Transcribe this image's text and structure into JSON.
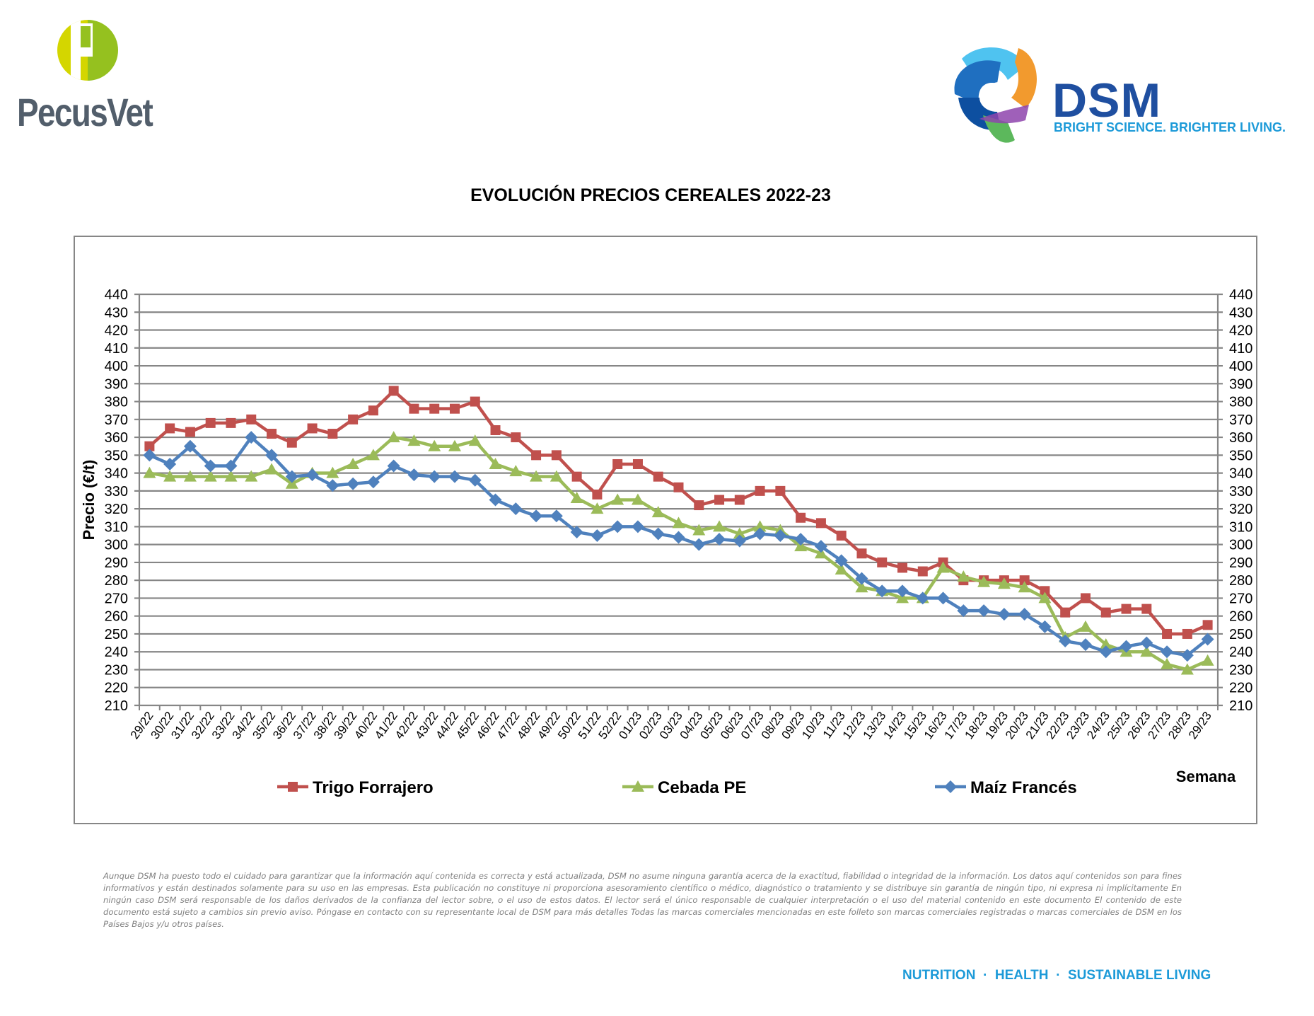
{
  "header": {
    "left_logo": {
      "name": "PecusVet"
    },
    "right_logo": {
      "name": "DSM",
      "tagline": "BRIGHT SCIENCE. BRIGHTER LIVING."
    }
  },
  "chart_data": {
    "type": "line",
    "title": "EVOLUCIÓN PRECIOS CEREALES 2022-23",
    "xlabel": "Semana",
    "ylabel": "Precio (€/t)",
    "ylim": [
      210,
      440
    ],
    "ytick_step": 10,
    "secondary_y_axis": true,
    "grid": true,
    "legend_position": "bottom",
    "categories": [
      "29/22",
      "30/22",
      "31/22",
      "32/22",
      "33/22",
      "34/22",
      "35/22",
      "36/22",
      "37/22",
      "38/22",
      "39/22",
      "40/22",
      "41/22",
      "42/22",
      "43/22",
      "44/22",
      "45/22",
      "46/22",
      "47/22",
      "48/22",
      "49/22",
      "50/22",
      "51/22",
      "52/22",
      "01/23",
      "02/23",
      "03/23",
      "04/23",
      "05/23",
      "06/23",
      "07/23",
      "08/23",
      "09/23",
      "10/23",
      "11/23",
      "12/23",
      "13/23",
      "14/23",
      "15/23",
      "16/23",
      "17/23",
      "18/23",
      "19/23",
      "20/23",
      "21/23",
      "22/23",
      "23/23",
      "24/23",
      "25/23",
      "26/23",
      "27/23",
      "28/23",
      "29/23"
    ],
    "series": [
      {
        "name": "Trigo Forrajero",
        "color": "#c0504d",
        "marker": "square",
        "values": [
          355,
          365,
          363,
          368,
          368,
          370,
          362,
          357,
          365,
          362,
          370,
          375,
          386,
          376,
          376,
          376,
          380,
          364,
          360,
          350,
          350,
          338,
          328,
          345,
          345,
          338,
          332,
          322,
          325,
          325,
          330,
          330,
          315,
          312,
          305,
          295,
          290,
          287,
          285,
          290,
          280,
          280,
          280,
          280,
          274,
          262,
          270,
          262,
          264,
          264,
          250,
          250,
          255
        ]
      },
      {
        "name": "Cebada PE",
        "color": "#9bbb59",
        "marker": "triangle",
        "values": [
          340,
          338,
          338,
          338,
          338,
          338,
          342,
          334,
          340,
          340,
          345,
          350,
          360,
          358,
          355,
          355,
          358,
          345,
          341,
          338,
          338,
          326,
          320,
          325,
          325,
          318,
          312,
          308,
          310,
          306,
          310,
          308,
          299,
          295,
          286,
          276,
          274,
          270,
          270,
          287,
          282,
          279,
          278,
          276,
          270,
          248,
          254,
          244,
          240,
          240,
          233,
          230,
          235
        ]
      },
      {
        "name": "Maíz Francés",
        "color": "#4f81bd",
        "marker": "diamond",
        "values": [
          350,
          345,
          355,
          344,
          344,
          360,
          350,
          338,
          339,
          333,
          334,
          335,
          344,
          339,
          338,
          338,
          336,
          325,
          320,
          316,
          316,
          307,
          305,
          310,
          310,
          306,
          304,
          300,
          303,
          302,
          306,
          305,
          303,
          299,
          291,
          281,
          274,
          274,
          270,
          270,
          263,
          263,
          261,
          261,
          254,
          246,
          244,
          240,
          243,
          245,
          240,
          238,
          247
        ]
      }
    ]
  },
  "footer": {
    "disclaimer": "Aunque DSM ha puesto todo el cuidado para garantizar que la información aquí contenida es correcta y está actualizada, DSM no asume ninguna garantía acerca de la exactitud, fiabilidad o integridad de la información. Los datos aquí contenidos son para fines informativos y están destinados solamente para su uso en las empresas. Esta publicación no constituye ni proporciona asesoramiento científico o médico, diagnóstico o tratamiento y se distribuye sin garantía de ningún tipo, ni expresa ni implícitamente En ningún caso DSM será responsable de los daños derivados de la confianza del lector sobre, o el uso de estos datos. El lector será el único responsable de cualquier interpretación o el uso del material contenido en este documento El contenido de este documento está sujeto a cambios sin previo aviso. Póngase en contacto con su representante local de DSM para más detalles Todas las marcas comerciales mencionadas en este folleto son marcas comerciales registradas o marcas comerciales de DSM en los Países Bajos y/u otros países.",
    "tagline": "NUTRITION  ·  HEALTH  ·  SUSTAINABLE LIVING"
  }
}
